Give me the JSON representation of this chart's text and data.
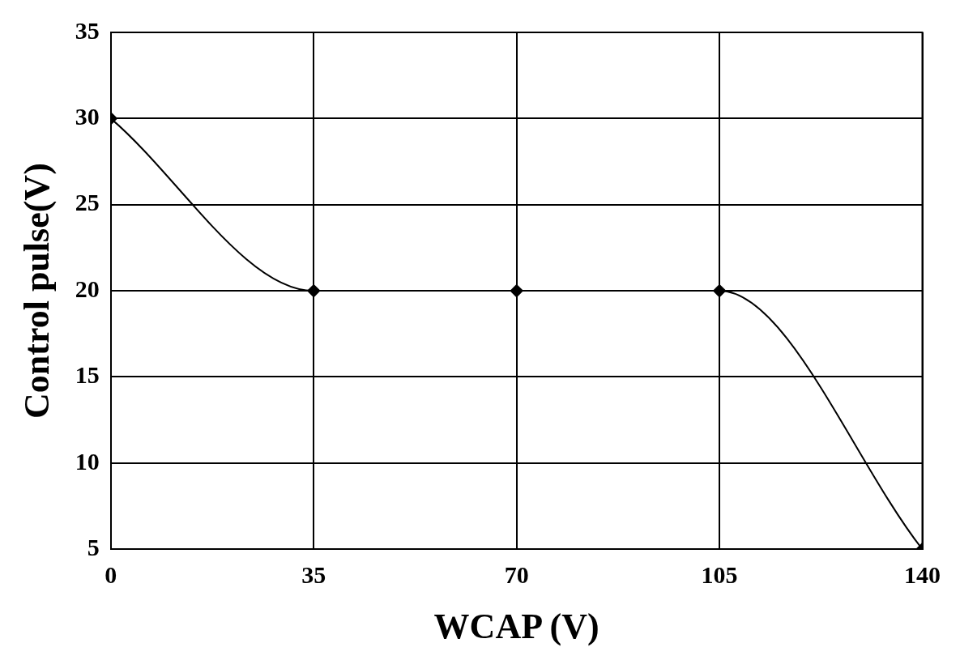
{
  "chart_data": {
    "type": "line",
    "xlabel": "WCAP (V)",
    "ylabel": "Control pulse(V)",
    "x": [
      0,
      35,
      70,
      105,
      140
    ],
    "series": [
      {
        "color": "#000000",
        "values": [
          30,
          20,
          20,
          20,
          5
        ]
      }
    ],
    "xlim": [
      0,
      140
    ],
    "xticks": [
      0,
      35,
      70,
      105,
      140
    ],
    "ylim": [
      5,
      35
    ],
    "yticks": [
      5,
      10,
      15,
      20,
      25,
      30,
      35
    ],
    "grid": true,
    "marker": "diamond",
    "line_style": "solid",
    "legend": false
  }
}
